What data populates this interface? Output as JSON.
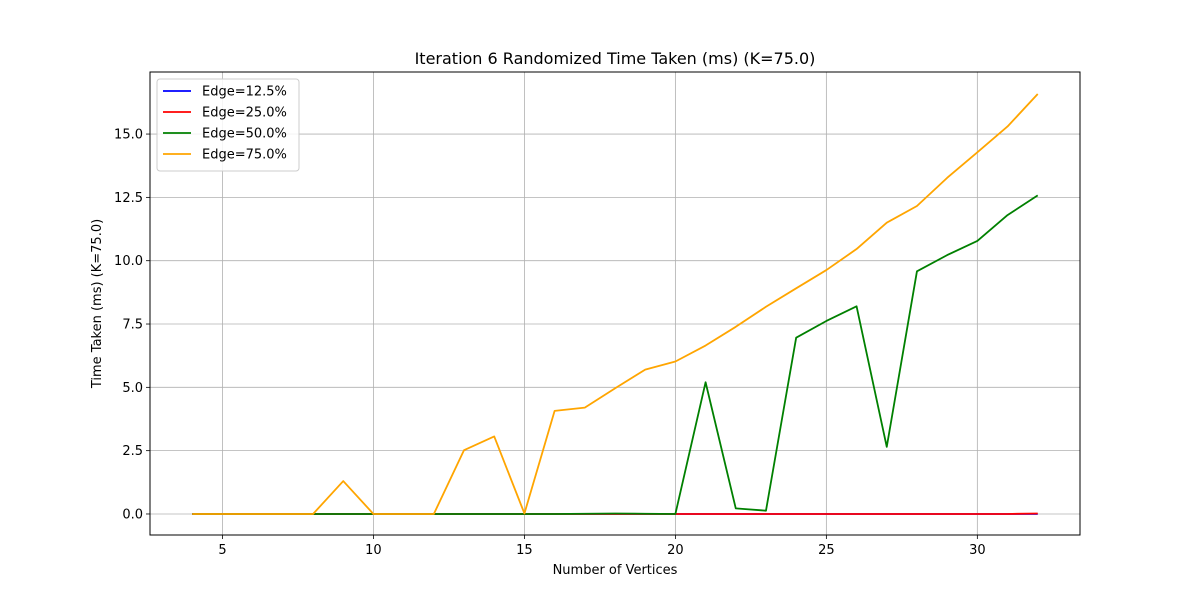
{
  "chart_data": {
    "type": "line",
    "title": "Iteration 6 Randomized Time Taken (ms) (K=75.0)",
    "xlabel": "Number of Vertices",
    "ylabel": "Time Taken (ms) (K=75.0)",
    "xlim": [
      2.6,
      33.4
    ],
    "ylim": [
      -0.83,
      17.45
    ],
    "xticks": [
      5,
      10,
      15,
      20,
      25,
      30
    ],
    "yticks": [
      0.0,
      2.5,
      5.0,
      7.5,
      10.0,
      12.5,
      15.0
    ],
    "xtick_labels": [
      "5",
      "10",
      "15",
      "20",
      "25",
      "30"
    ],
    "ytick_labels": [
      "0.0",
      "2.5",
      "5.0",
      "7.5",
      "10.0",
      "12.5",
      "15.0"
    ],
    "grid": true,
    "legend_position": "top-left",
    "x": [
      4,
      5,
      6,
      7,
      8,
      9,
      10,
      11,
      12,
      13,
      14,
      15,
      16,
      17,
      18,
      19,
      20,
      21,
      22,
      23,
      24,
      25,
      26,
      27,
      28,
      29,
      30,
      31,
      32
    ],
    "series": [
      {
        "name": "Edge=12.5%",
        "color": "#0000ff",
        "values": [
          0,
          0,
          0,
          0,
          0,
          0,
          0,
          0,
          0,
          0,
          0,
          0,
          0,
          0,
          0,
          0,
          0,
          0,
          0,
          0,
          0,
          0,
          0,
          0,
          0,
          0,
          0,
          0,
          0
        ]
      },
      {
        "name": "Edge=25.0%",
        "color": "#ff0000",
        "values": [
          0,
          0,
          0,
          0,
          0,
          0,
          0,
          0,
          0,
          0,
          0,
          0,
          0,
          0,
          0,
          0,
          0,
          0,
          0,
          0,
          0,
          0,
          0,
          0,
          0,
          0,
          0,
          0,
          0.02
        ]
      },
      {
        "name": "Edge=50.0%",
        "color": "#008000",
        "values": [
          0,
          0,
          0,
          0,
          0,
          0,
          0,
          0,
          0,
          0,
          0,
          0,
          0,
          0.01,
          0.02,
          0.01,
          0,
          5.2,
          0.22,
          0.13,
          6.96,
          7.62,
          8.2,
          2.65,
          9.58,
          10.22,
          10.78,
          11.8,
          12.58
        ]
      },
      {
        "name": "Edge=75.0%",
        "color": "#ffa500",
        "values": [
          0,
          0,
          0,
          0,
          0,
          1.3,
          0,
          0,
          0,
          2.52,
          3.06,
          0.02,
          4.07,
          4.2,
          4.96,
          5.7,
          6.02,
          6.65,
          7.39,
          8.18,
          8.91,
          9.63,
          10.46,
          11.5,
          12.16,
          13.27,
          14.28,
          15.3,
          16.58
        ]
      }
    ]
  }
}
